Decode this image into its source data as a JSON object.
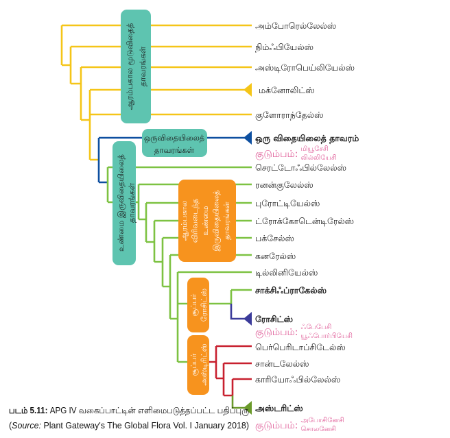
{
  "colors": {
    "early": "#f5c518",
    "monocot": "#0d4fa0",
    "eudicot": "#7dc242",
    "rosids": "#3b3b9a",
    "asterids_branch": "#c8202f",
    "asterids": "#6a9a2a",
    "teal_box": "#5ec4b0",
    "orange_box": "#f7931e",
    "family": "#e0609a"
  },
  "leaves": [
    {
      "label": "அம்போரெல்லேல்ஸ்",
      "bold": false
    },
    {
      "label": "நிம்ஃபியேல்ஸ்",
      "bold": false
    },
    {
      "label": "அஸ்டிரோபெய்லியேல்ஸ்",
      "bold": false
    },
    {
      "label": "மக்னோலிட்ஸ்",
      "bold": false
    },
    {
      "label": "குளோராந்தேல்ஸ்",
      "bold": false
    },
    {
      "label": "ஒரு விதையிலைத் தாவரம்",
      "bold": true
    },
    {
      "label": "செரட்டோஃபில்லேல்ஸ்",
      "bold": false
    },
    {
      "label": "ரனன்குலேல்ஸ்",
      "bold": false
    },
    {
      "label": "புரோட்டியேல்ஸ்",
      "bold": false
    },
    {
      "label": "ட்ரோக்கோடென்டிரேல்ஸ்",
      "bold": false
    },
    {
      "label": "பக்சேல்ஸ்",
      "bold": false
    },
    {
      "label": "கனரேல்ஸ்",
      "bold": false
    },
    {
      "label": "டில்லினியேல்ஸ்",
      "bold": false
    },
    {
      "label": "சாக்சிஃப்ராகேல்ஸ்",
      "bold": true
    },
    {
      "label": "ரோசிட்ஸ்",
      "bold": true
    },
    {
      "label": "பெர்பெரிடாப்சிடேல்ஸ்",
      "bold": false
    },
    {
      "label": "சான்டலேல்ஸ்",
      "bold": false
    },
    {
      "label": "காரியோஃபில்லேல்ஸ்",
      "bold": false
    },
    {
      "label": "அஸ்டரிட்ஸ்",
      "bold": true
    }
  ],
  "families": [
    {
      "prefix": "குடும்பம்:",
      "names": [
        "மியூசேசி",
        "லில்லியேசி"
      ]
    },
    {
      "prefix": "குடும்பம்:",
      "names": [
        "ஃபேபேசி",
        "யூஃபோர்பியேசி"
      ]
    },
    {
      "prefix": "குடும்பம்:",
      "names": [
        "அபோசினேசி",
        "சொலனேசி"
      ]
    }
  ],
  "boxes": {
    "early_angiosperms": [
      "ஆரம்பகால  மூடுவிதைத்",
      "தாவரங்கள்"
    ],
    "monocots": [
      "ஒருவிதையிலைத்",
      "தாவரங்கள்"
    ],
    "eudicots": [
      "உண்மை இருவிதையிலைத்",
      "தாவரங்கள்"
    ],
    "early_core_eudicots": [
      "ஆரம்பகால",
      "விரிவடைந்த",
      "உண்மை",
      "இருவிதையிலைத்",
      "தாவரங்கள்"
    ],
    "super_rosids": [
      "சூப்பர்",
      "ரோசிட்ஸ்"
    ],
    "super_asterids": [
      "சூப்பர்",
      "அஸ்டிரிட்ஸ்"
    ]
  },
  "caption": {
    "label": "படம் 5.11:",
    "text": "APG IV வகைப்பாட்டின் எளிமைபடுத்தப்பட்ட பதிப்புரு",
    "source_open": "(",
    "source_word": "Source:",
    "source_rest": " Plant Gateway's The Global Flora Vol. I January 2018)"
  }
}
